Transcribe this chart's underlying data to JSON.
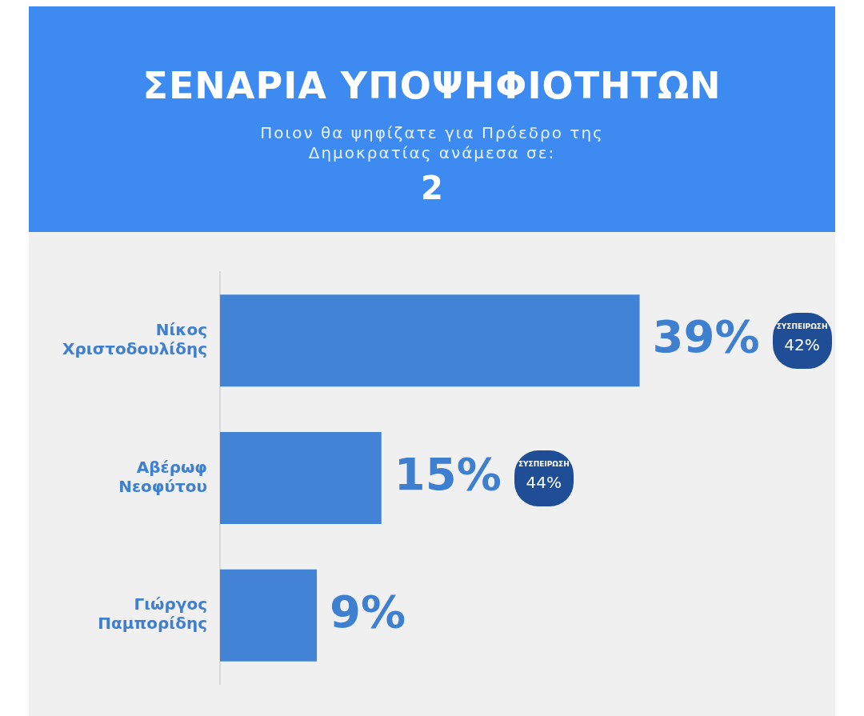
{
  "chart_data": {
    "type": "bar",
    "orientation": "horizontal",
    "title": "ΣΕΝΑΡΙΑ ΥΠΟΨΗΦΙΟΤΗΤΩΝ",
    "subtitle": "Ποιον θα ψηφίζατε για Πρόεδρο της Δημοκρατίας ανάμεσα σε:",
    "categories": [
      "Νίκος Χριστοδουλίδης",
      "Αβέρωφ Νεοφύτου",
      "Γιώργος Παμπορίδης"
    ],
    "values": [
      39,
      15,
      9
    ],
    "value_labels": [
      "39%",
      "15%",
      "9%"
    ],
    "color": "#4383d6",
    "legend": false,
    "annotations": [
      "2",
      "ΣΥΣΠΕΙΡΩΣΗ 42%",
      "ΣΥΣΠΕΙΡΩΣΗ 44%"
    ]
  }
}
